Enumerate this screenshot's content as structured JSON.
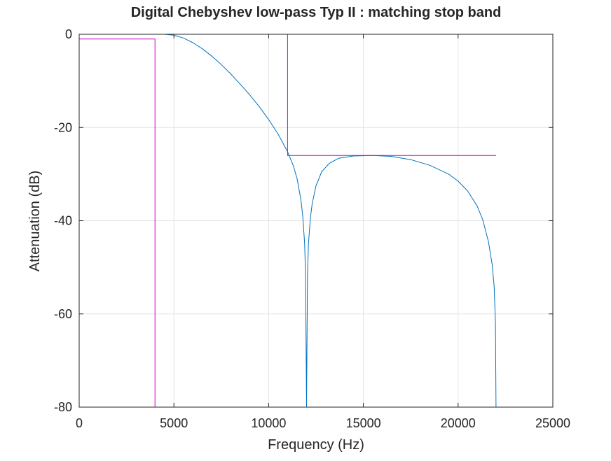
{
  "chart_data": {
    "type": "line",
    "title": "Digital Chebyshev low-pass Typ II : matching stop band",
    "xlabel": "Frequency (Hz)",
    "ylabel": "Attenuation (dB)",
    "xlim": [
      0,
      25000
    ],
    "ylim": [
      -80,
      0
    ],
    "xticks": [
      0,
      5000,
      10000,
      15000,
      20000,
      25000
    ],
    "xtick_labels": [
      "0",
      "5000",
      "10000",
      "15000",
      "20000",
      "25000"
    ],
    "yticks": [
      0,
      -20,
      -40,
      -60,
      -80
    ],
    "ytick_labels": [
      "0",
      "-20",
      "-40",
      "-60",
      "-80"
    ],
    "grid": true,
    "series": [
      {
        "color": "#0072bd",
        "points": [
          [
            4500,
            0
          ],
          [
            5000,
            -0.2
          ],
          [
            5500,
            -0.8
          ],
          [
            6000,
            -1.8
          ],
          [
            6500,
            -3.1
          ],
          [
            7000,
            -4.7
          ],
          [
            7500,
            -6.5
          ],
          [
            8000,
            -8.5
          ],
          [
            8500,
            -10.7
          ],
          [
            9000,
            -13.0
          ],
          [
            9500,
            -15.5
          ],
          [
            10000,
            -18.3
          ],
          [
            10500,
            -21.4
          ],
          [
            11000,
            -25.2
          ],
          [
            11300,
            -28.2
          ],
          [
            11500,
            -31.0
          ],
          [
            11700,
            -35.5
          ],
          [
            11800,
            -39.0
          ],
          [
            11900,
            -45.0
          ],
          [
            11950,
            -52.0
          ],
          [
            12000,
            -80
          ],
          [
            12050,
            -52.0
          ],
          [
            12100,
            -45.0
          ],
          [
            12200,
            -39.5
          ],
          [
            12300,
            -36.3
          ],
          [
            12500,
            -32.5
          ],
          [
            12800,
            -29.5
          ],
          [
            13200,
            -27.7
          ],
          [
            13700,
            -26.6
          ],
          [
            14500,
            -26.1
          ],
          [
            15500,
            -26.0
          ],
          [
            16500,
            -26.2
          ],
          [
            17500,
            -26.9
          ],
          [
            18500,
            -28.1
          ],
          [
            19500,
            -30.0
          ],
          [
            20000,
            -31.5
          ],
          [
            20500,
            -33.6
          ],
          [
            21000,
            -36.8
          ],
          [
            21300,
            -39.8
          ],
          [
            21600,
            -44.5
          ],
          [
            21800,
            -49.5
          ],
          [
            21900,
            -54.0
          ],
          [
            21970,
            -62.0
          ],
          [
            22000,
            -80
          ]
        ]
      },
      {
        "color": "#cc00cc",
        "points": [
          [
            0,
            -1
          ],
          [
            4000,
            -1
          ],
          [
            4000,
            -80
          ]
        ]
      },
      {
        "color": "#cc00cc",
        "points": [
          [
            0,
            0
          ],
          [
            11000,
            0
          ],
          [
            11000,
            -26
          ],
          [
            22000,
            -26
          ]
        ]
      }
    ]
  }
}
